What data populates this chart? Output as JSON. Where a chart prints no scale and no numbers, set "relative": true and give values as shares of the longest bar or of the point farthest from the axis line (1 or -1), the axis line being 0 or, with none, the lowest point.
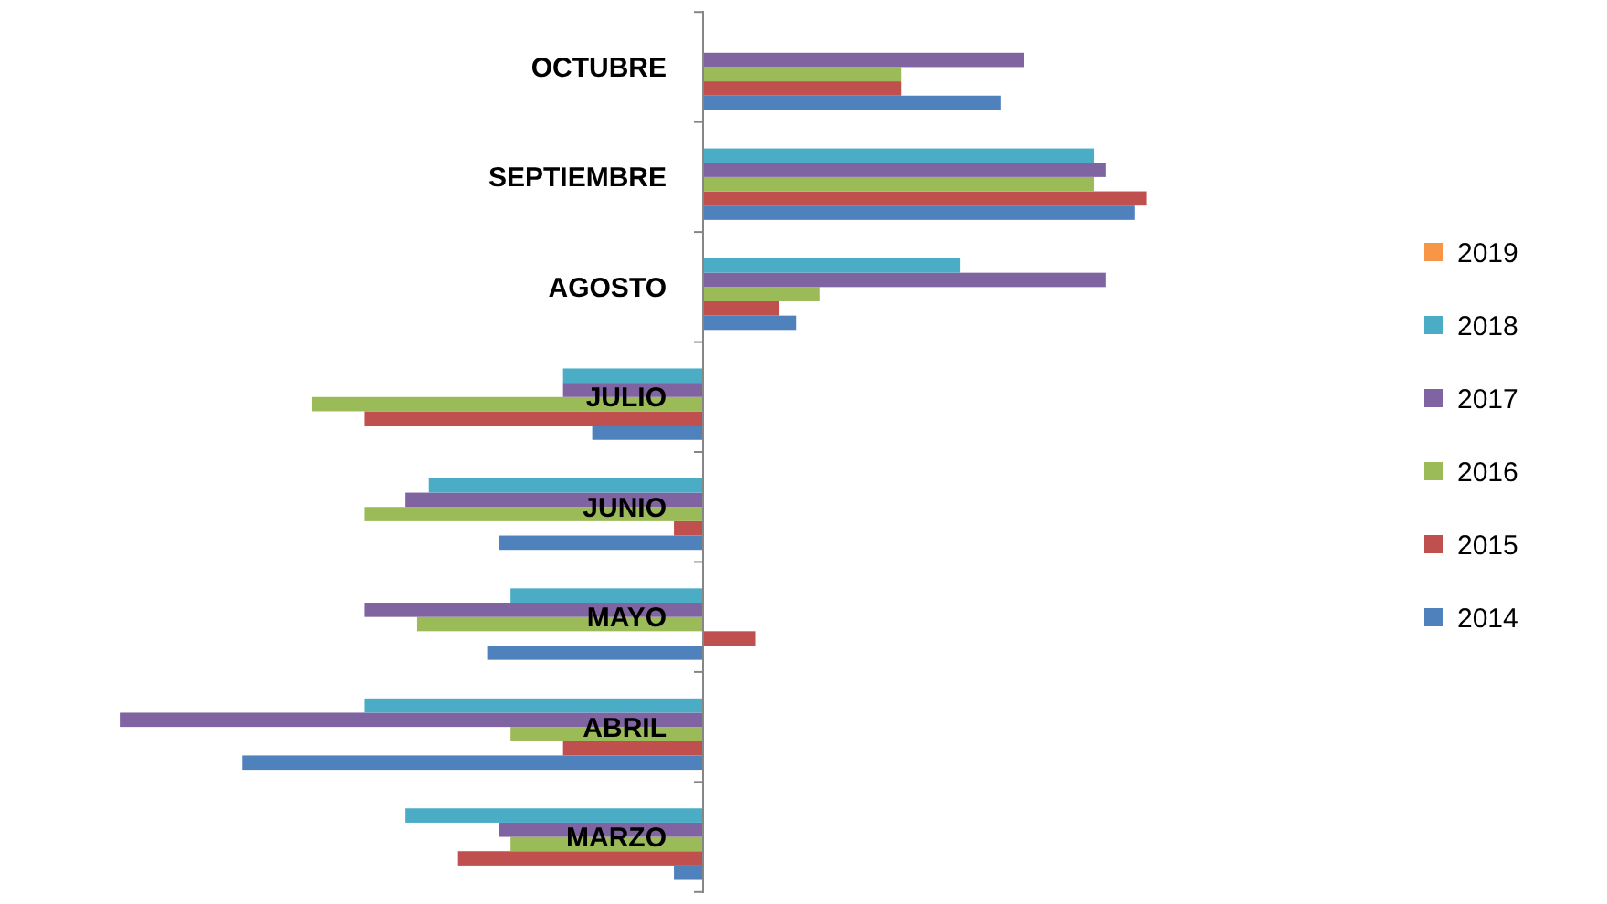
{
  "chart_data": {
    "type": "bar",
    "orientation": "horizontal",
    "relative": true,
    "legend": "right",
    "categories": [
      "OCTUBRE",
      "SEPTIEMBRE",
      "AGOSTO",
      "JULIO",
      "JUNIO",
      "MAYO",
      "ABRIL",
      "MARZO"
    ],
    "series": [
      {
        "name": "2014",
        "color": "#4f81bd",
        "values": [
          0.51,
          0.74,
          0.16,
          -0.19,
          -0.35,
          -0.37,
          -0.79,
          -0.05
        ]
      },
      {
        "name": "2015",
        "color": "#c0504d",
        "values": [
          0.34,
          0.76,
          0.13,
          -0.58,
          -0.05,
          0.09,
          -0.24,
          -0.42
        ]
      },
      {
        "name": "2016",
        "color": "#9bbb59",
        "values": [
          0.34,
          0.67,
          0.2,
          -0.67,
          -0.58,
          -0.49,
          -0.33,
          -0.33
        ]
      },
      {
        "name": "2017",
        "color": "#8064a2",
        "values": [
          0.55,
          0.69,
          0.69,
          -0.24,
          -0.51,
          -0.58,
          -1,
          -0.35
        ]
      },
      {
        "name": "2018",
        "color": "#4bacc6",
        "values": [
          null,
          0.67,
          0.44,
          -0.24,
          -0.47,
          -0.33,
          -0.58,
          -0.51
        ]
      },
      {
        "name": "2019",
        "color": "#f79646",
        "values": [
          null,
          null,
          null,
          null,
          null,
          null,
          null,
          null
        ]
      }
    ]
  }
}
